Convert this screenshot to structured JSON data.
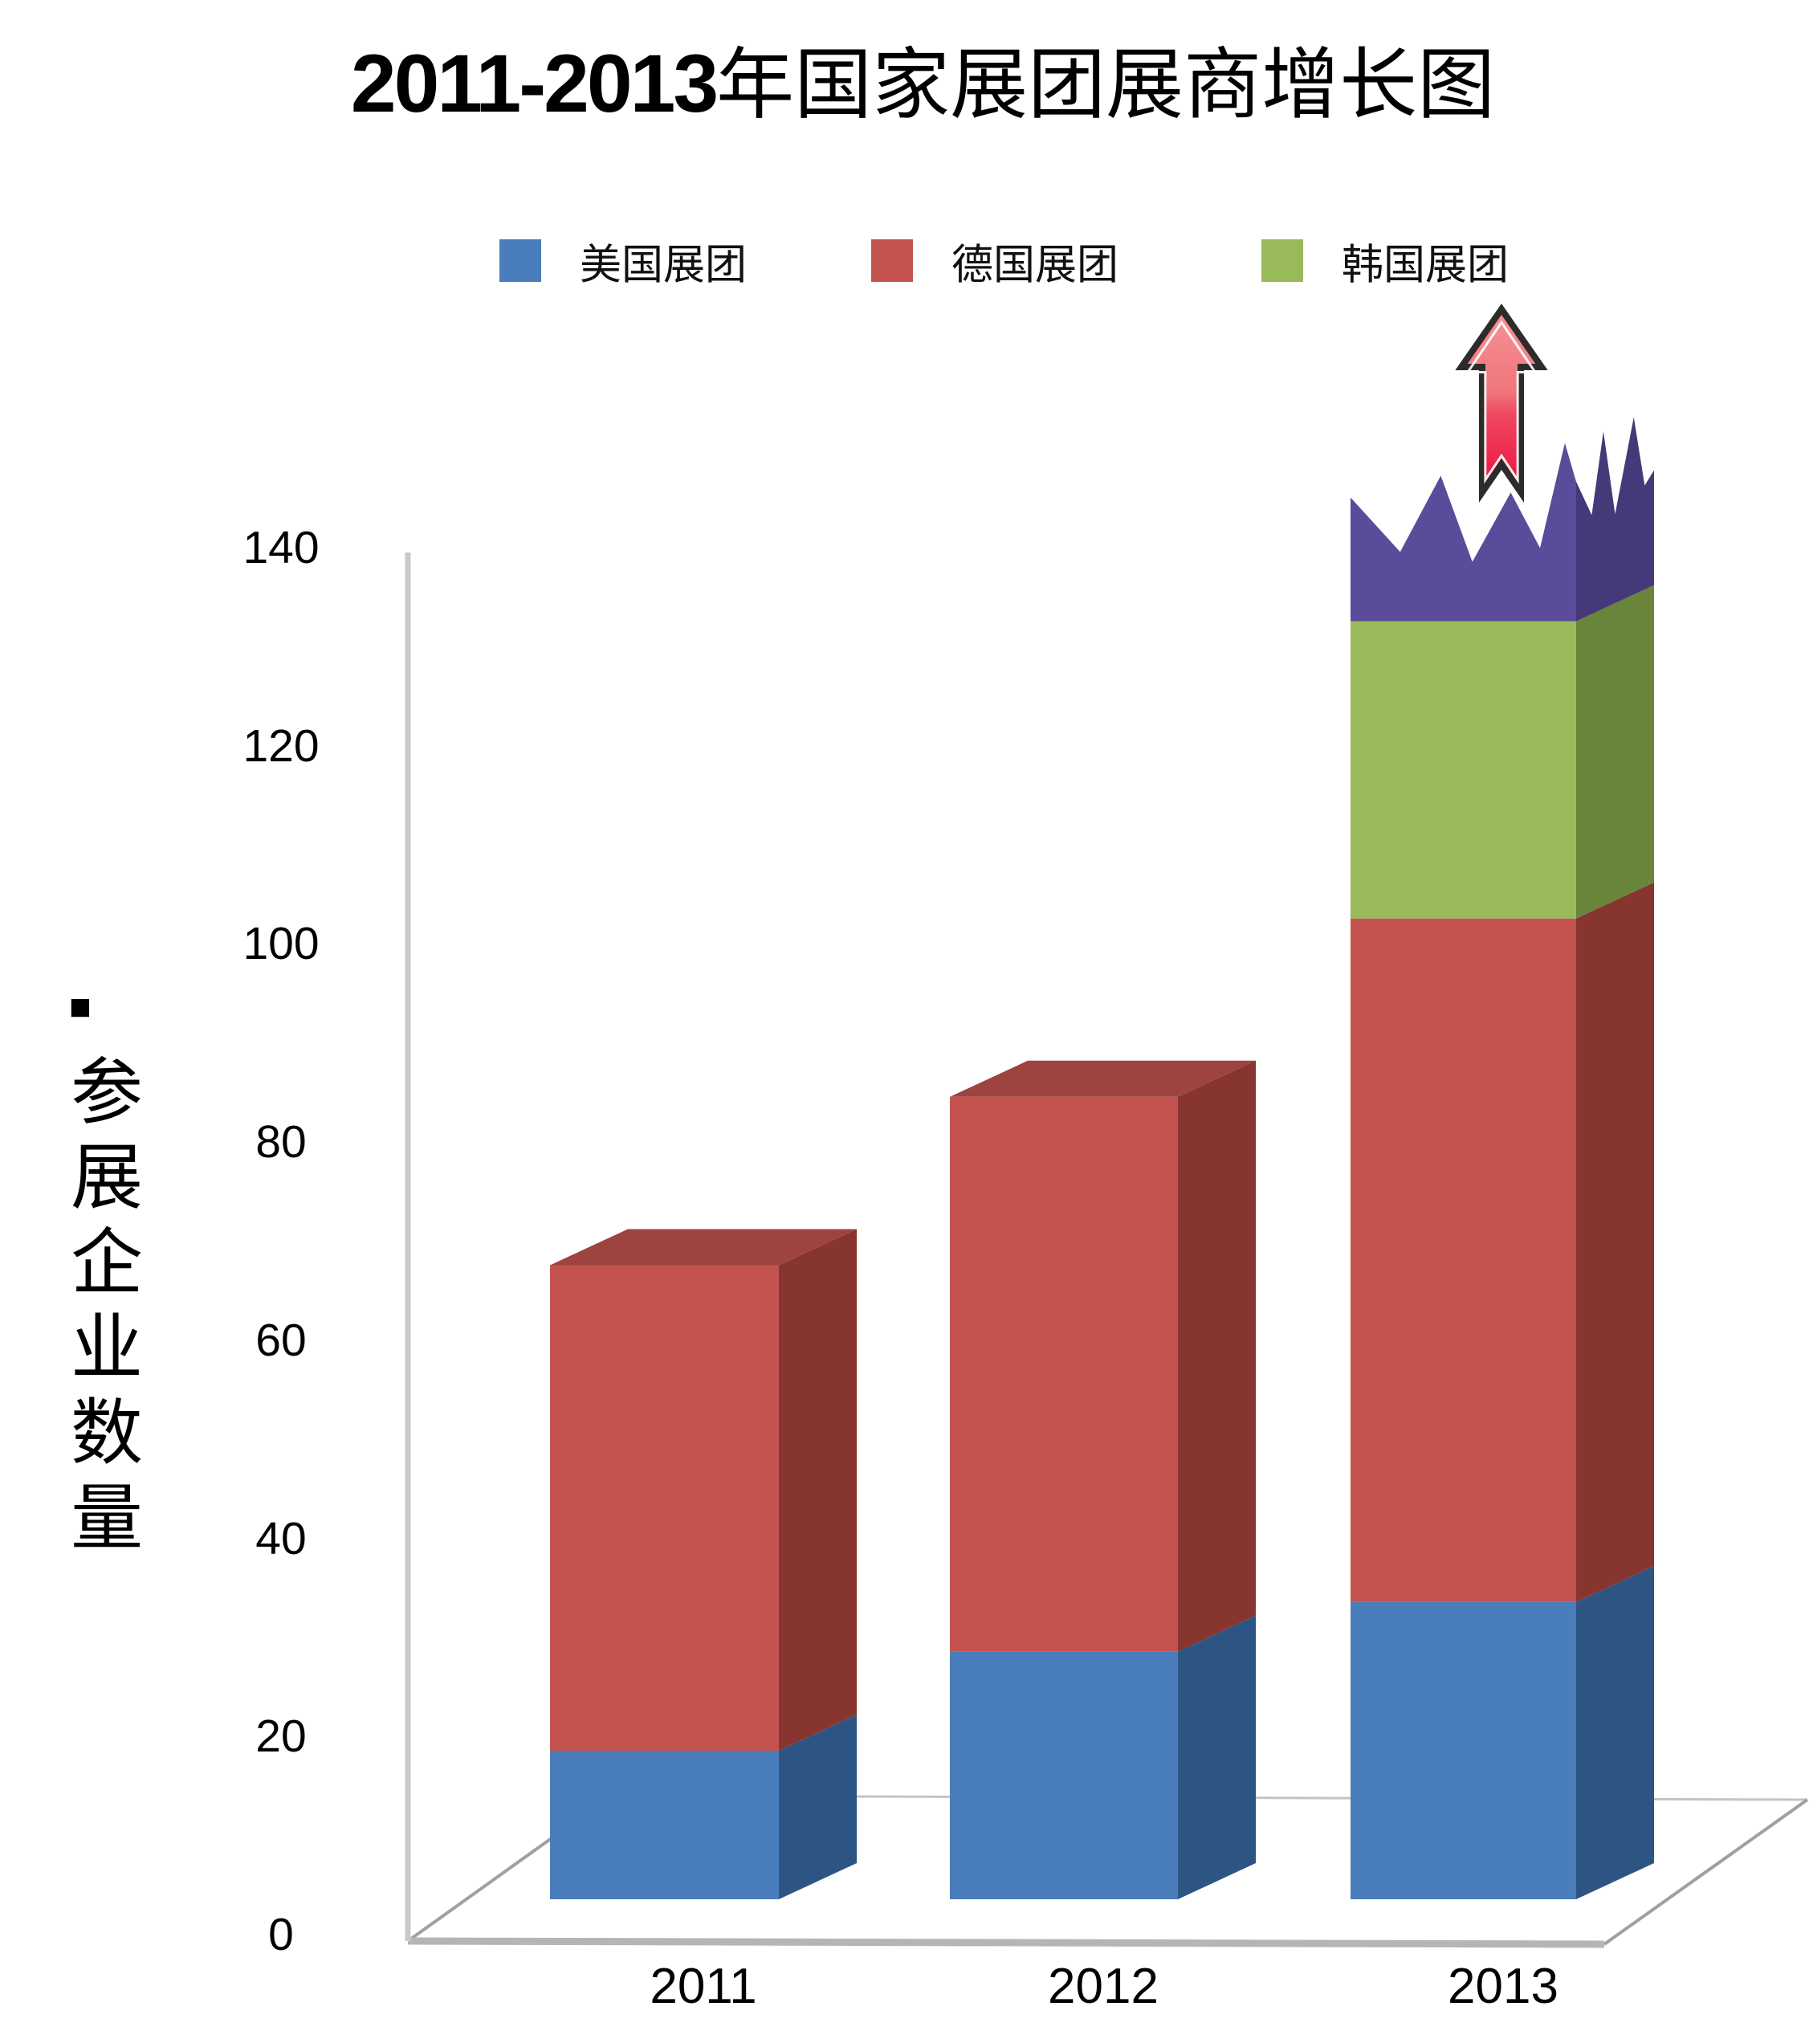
{
  "title": {
    "prefix": "2011-2013",
    "suffix": "年国家展团展商增长图"
  },
  "legend": [
    {
      "label": "美国展团",
      "color": "#4A7DBB"
    },
    {
      "label": "德国展团",
      "color": "#C4534F"
    },
    {
      "label": "韩国展团",
      "color": "#99BA58"
    }
  ],
  "y_axis": {
    "bullet": "■",
    "unit_label": "参展企业数量",
    "ticks": [
      140,
      120,
      100,
      80,
      60,
      40,
      20,
      0
    ]
  },
  "x_axis": {
    "categories": [
      "2011",
      "2012",
      "2013"
    ]
  },
  "chart_data": {
    "type": "bar",
    "stacked": true,
    "projection": "3d",
    "title": "2011-2013年国家展团展商增长图",
    "ylabel": "参展企业数量",
    "xlabel": "",
    "ylim": [
      0,
      140
    ],
    "grid": false,
    "legend_position": "top",
    "categories": [
      "2011",
      "2012",
      "2013"
    ],
    "series": [
      {
        "name": "美国展团",
        "key": "usa",
        "values": [
          15,
          25,
          30
        ],
        "colors": {
          "front": "#4A7DBB",
          "side": "#2D5584"
        }
      },
      {
        "name": "德国展团",
        "key": "germany",
        "values": [
          49,
          56,
          69
        ],
        "colors": {
          "front": "#C4534F",
          "side": "#86352F",
          "top": "#9D4340"
        }
      },
      {
        "name": "韩国展团",
        "key": "korea",
        "values": [
          null,
          null,
          30
        ],
        "colors": {
          "front": "#99BA58",
          "side": "#69853B"
        }
      }
    ],
    "totals": [
      64,
      81,
      129
    ],
    "growth_extension": {
      "category": "2013",
      "meaning": "torn jagged top suggesting continued growth in 2013",
      "base_value": 129,
      "front_profile": [
        [
          0,
          141.5
        ],
        [
          0.22,
          136
        ],
        [
          0.4,
          143.7
        ],
        [
          0.54,
          135
        ],
        [
          0.71,
          142
        ],
        [
          0.84,
          136.4
        ],
        [
          0.95,
          147
        ],
        [
          1,
          143.1
        ]
      ],
      "side_profile": [
        [
          0,
          143.1
        ],
        [
          0.2,
          139
        ],
        [
          0.35,
          146.9
        ],
        [
          0.5,
          138
        ],
        [
          0.74,
          146.9
        ],
        [
          0.88,
          139.5
        ],
        [
          1,
          140.6
        ]
      ],
      "colors": {
        "front": "#5A4B9B",
        "side": "#463979"
      }
    },
    "arrow": {
      "meaning": "upward growth arrow above 2013 column",
      "colors": {
        "top": "#F59296",
        "mid": "#F0767D",
        "bottom": "#EC1241",
        "outline": "#2E2B2B",
        "inner_line": "#FFFFFF"
      }
    }
  },
  "colors": {
    "axis_line": "#C9C9C9",
    "floor_front": "#B5B5B5",
    "floor_diagonal": "#A0A0A0",
    "floor_back": "#C4C4C4",
    "text": "#000000"
  }
}
